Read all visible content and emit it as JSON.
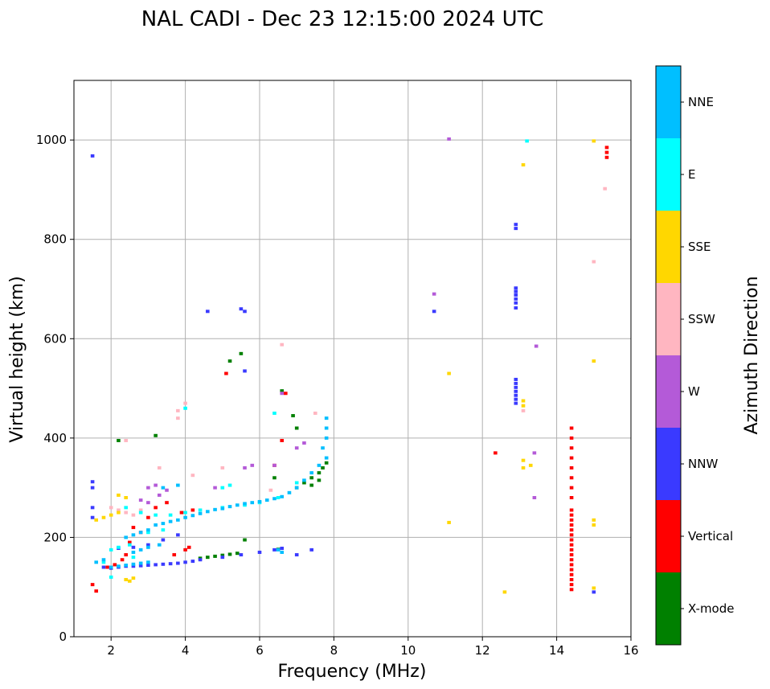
{
  "chart_data": {
    "type": "scatter",
    "title": "NAL CADI - Dec 23 12:15:00 2024 UTC",
    "xlabel": "Frequency (MHz)",
    "ylabel": "Virtual height (km)",
    "xlim": [
      1,
      16
    ],
    "ylim": [
      0,
      1120
    ],
    "xticks": [
      2,
      4,
      6,
      8,
      10,
      12,
      14,
      16
    ],
    "yticks": [
      0,
      200,
      400,
      600,
      800,
      1000
    ],
    "grid": true,
    "colorbar": {
      "title": "Azimuth Direction",
      "categories": [
        {
          "name": "X-mode",
          "color": "#008000"
        },
        {
          "name": "Vertical",
          "color": "#ff0000"
        },
        {
          "name": "NNW",
          "color": "#3a3aff"
        },
        {
          "name": "W",
          "color": "#b45ad8"
        },
        {
          "name": "SSW",
          "color": "#ffb6c1"
        },
        {
          "name": "SSE",
          "color": "#ffd700"
        },
        {
          "name": "E",
          "color": "#00ffff"
        },
        {
          "name": "NNE",
          "color": "#00bfff"
        }
      ]
    },
    "series": [
      {
        "name": "X-mode",
        "color": "#008000",
        "points": [
          [
            4.4,
            158
          ],
          [
            4.6,
            160
          ],
          [
            4.8,
            162
          ],
          [
            5.0,
            164
          ],
          [
            5.2,
            166
          ],
          [
            5.4,
            168
          ],
          [
            6.4,
            320
          ],
          [
            6.5,
            176
          ],
          [
            7.0,
            300
          ],
          [
            7.2,
            310
          ],
          [
            7.4,
            320
          ],
          [
            7.6,
            330
          ],
          [
            7.7,
            340
          ],
          [
            7.8,
            350
          ],
          [
            7.6,
            315
          ],
          [
            7.4,
            305
          ],
          [
            5.5,
            570
          ],
          [
            5.2,
            555
          ],
          [
            6.6,
            495
          ],
          [
            7.0,
            420
          ],
          [
            6.9,
            445
          ],
          [
            5.6,
            195
          ],
          [
            2.2,
            395
          ],
          [
            3.2,
            405
          ]
        ]
      },
      {
        "name": "Vertical",
        "color": "#ff0000",
        "points": [
          [
            1.5,
            105
          ],
          [
            1.6,
            92
          ],
          [
            1.9,
            140
          ],
          [
            2.1,
            145
          ],
          [
            2.3,
            155
          ],
          [
            2.5,
            190
          ],
          [
            2.8,
            210
          ],
          [
            3.0,
            240
          ],
          [
            3.2,
            260
          ],
          [
            3.5,
            270
          ],
          [
            4.0,
            175
          ],
          [
            4.1,
            180
          ],
          [
            2.4,
            165
          ],
          [
            2.6,
            220
          ],
          [
            3.7,
            165
          ],
          [
            3.9,
            250
          ],
          [
            4.2,
            255
          ],
          [
            6.4,
            345
          ],
          [
            6.6,
            395
          ],
          [
            6.7,
            490
          ],
          [
            5.1,
            530
          ],
          [
            12.35,
            370
          ],
          [
            14.4,
            95
          ],
          [
            14.4,
            105
          ],
          [
            14.4,
            115
          ],
          [
            14.4,
            125
          ],
          [
            14.4,
            135
          ],
          [
            14.4,
            145
          ],
          [
            14.4,
            155
          ],
          [
            14.4,
            165
          ],
          [
            14.4,
            175
          ],
          [
            14.4,
            185
          ],
          [
            14.4,
            195
          ],
          [
            14.4,
            205
          ],
          [
            14.4,
            215
          ],
          [
            14.4,
            225
          ],
          [
            14.4,
            235
          ],
          [
            14.4,
            245
          ],
          [
            14.4,
            255
          ],
          [
            14.4,
            280
          ],
          [
            14.4,
            300
          ],
          [
            14.4,
            320
          ],
          [
            14.4,
            340
          ],
          [
            14.4,
            360
          ],
          [
            14.4,
            380
          ],
          [
            14.4,
            400
          ],
          [
            14.4,
            420
          ],
          [
            15.35,
            965
          ],
          [
            15.35,
            975
          ],
          [
            15.35,
            985
          ]
        ]
      },
      {
        "name": "NNW",
        "color": "#3a3aff",
        "points": [
          [
            1.5,
            968
          ],
          [
            1.5,
            312
          ],
          [
            1.5,
            300
          ],
          [
            1.8,
            140
          ],
          [
            2.0,
            138
          ],
          [
            2.2,
            140
          ],
          [
            2.4,
            142
          ],
          [
            2.6,
            142
          ],
          [
            2.8,
            143
          ],
          [
            3.0,
            144
          ],
          [
            3.2,
            145
          ],
          [
            3.4,
            146
          ],
          [
            3.6,
            147
          ],
          [
            3.8,
            148
          ],
          [
            4.0,
            150
          ],
          [
            4.2,
            152
          ],
          [
            4.4,
            155
          ],
          [
            5.0,
            160
          ],
          [
            5.5,
            165
          ],
          [
            6.0,
            170
          ],
          [
            6.4,
            175
          ],
          [
            6.6,
            178
          ],
          [
            7.0,
            165
          ],
          [
            7.4,
            175
          ],
          [
            1.5,
            260
          ],
          [
            1.5,
            240
          ],
          [
            4.6,
            655
          ],
          [
            5.5,
            660
          ],
          [
            5.6,
            655
          ],
          [
            5.6,
            535
          ],
          [
            10.7,
            655
          ],
          [
            12.9,
            830
          ],
          [
            12.9,
            822
          ],
          [
            12.9,
            702
          ],
          [
            12.9,
            695
          ],
          [
            12.9,
            688
          ],
          [
            12.9,
            680
          ],
          [
            12.9,
            672
          ],
          [
            12.9,
            662
          ],
          [
            12.9,
            518
          ],
          [
            12.9,
            510
          ],
          [
            12.9,
            502
          ],
          [
            12.9,
            494
          ],
          [
            12.9,
            486
          ],
          [
            12.9,
            478
          ],
          [
            12.9,
            470
          ],
          [
            15.0,
            90
          ],
          [
            2.2,
            178
          ],
          [
            2.6,
            180
          ],
          [
            3.0,
            185
          ],
          [
            3.4,
            195
          ],
          [
            3.8,
            205
          ]
        ]
      },
      {
        "name": "W",
        "color": "#b45ad8",
        "points": [
          [
            10.7,
            690
          ],
          [
            11.1,
            1002
          ],
          [
            13.45,
            585
          ],
          [
            13.4,
            370
          ],
          [
            13.4,
            280
          ],
          [
            3.0,
            300
          ],
          [
            3.2,
            305
          ],
          [
            3.5,
            295
          ],
          [
            5.6,
            340
          ],
          [
            5.8,
            345
          ],
          [
            2.8,
            275
          ],
          [
            3.0,
            270
          ],
          [
            3.3,
            285
          ],
          [
            7.0,
            380
          ],
          [
            7.2,
            390
          ],
          [
            6.4,
            345
          ],
          [
            4.8,
            300
          ],
          [
            6.6,
            490
          ]
        ]
      },
      {
        "name": "SSW",
        "color": "#ffb6c1",
        "points": [
          [
            6.6,
            588
          ],
          [
            4.0,
            470
          ],
          [
            3.8,
            455
          ],
          [
            3.8,
            440
          ],
          [
            2.4,
            395
          ],
          [
            2.0,
            260
          ],
          [
            2.2,
            255
          ],
          [
            2.4,
            250
          ],
          [
            2.6,
            245
          ],
          [
            2.8,
            255
          ],
          [
            3.3,
            340
          ],
          [
            4.2,
            325
          ],
          [
            5.0,
            340
          ],
          [
            13.1,
            455
          ],
          [
            15.0,
            755
          ],
          [
            15.3,
            902
          ],
          [
            7.5,
            450
          ],
          [
            6.3,
            295
          ]
        ]
      },
      {
        "name": "SSE",
        "color": "#ffd700",
        "points": [
          [
            1.6,
            235
          ],
          [
            1.8,
            240
          ],
          [
            2.0,
            245
          ],
          [
            2.2,
            250
          ],
          [
            2.4,
            115
          ],
          [
            2.5,
            112
          ],
          [
            2.6,
            118
          ],
          [
            2.2,
            285
          ],
          [
            2.4,
            280
          ],
          [
            11.1,
            530
          ],
          [
            11.1,
            230
          ],
          [
            12.6,
            90
          ],
          [
            13.1,
            950
          ],
          [
            13.1,
            475
          ],
          [
            13.1,
            465
          ],
          [
            13.1,
            355
          ],
          [
            13.1,
            340
          ],
          [
            13.3,
            345
          ],
          [
            15.0,
            235
          ],
          [
            15.0,
            225
          ],
          [
            15.0,
            998
          ],
          [
            15.0,
            555
          ],
          [
            15.0,
            98
          ]
        ]
      },
      {
        "name": "E",
        "color": "#00ffff",
        "points": [
          [
            4.0,
            460
          ],
          [
            13.2,
            998
          ],
          [
            2.4,
            260
          ],
          [
            2.8,
            250
          ],
          [
            3.2,
            245
          ],
          [
            3.6,
            245
          ],
          [
            4.0,
            250
          ],
          [
            4.4,
            255
          ],
          [
            2.0,
            175
          ],
          [
            2.2,
            180
          ],
          [
            2.5,
            185
          ],
          [
            3.0,
            210
          ],
          [
            3.4,
            215
          ],
          [
            5.0,
            260
          ],
          [
            5.6,
            265
          ],
          [
            6.0,
            270
          ],
          [
            6.5,
            280
          ],
          [
            7.0,
            310
          ],
          [
            1.8,
            150
          ],
          [
            2.6,
            160
          ],
          [
            6.4,
            450
          ],
          [
            5.0,
            300
          ],
          [
            5.2,
            305
          ],
          [
            2.0,
            120
          ]
        ]
      },
      {
        "name": "NNE",
        "color": "#00bfff",
        "points": [
          [
            2.0,
            140
          ],
          [
            2.2,
            142
          ],
          [
            2.4,
            144
          ],
          [
            2.6,
            146
          ],
          [
            2.8,
            148
          ],
          [
            3.0,
            150
          ],
          [
            3.2,
            225
          ],
          [
            3.4,
            228
          ],
          [
            3.6,
            232
          ],
          [
            3.8,
            235
          ],
          [
            4.0,
            240
          ],
          [
            4.2,
            244
          ],
          [
            4.4,
            248
          ],
          [
            4.6,
            252
          ],
          [
            4.8,
            256
          ],
          [
            5.0,
            258
          ],
          [
            5.2,
            262
          ],
          [
            5.4,
            265
          ],
          [
            5.6,
            268
          ],
          [
            5.8,
            270
          ],
          [
            6.0,
            272
          ],
          [
            6.2,
            275
          ],
          [
            6.4,
            278
          ],
          [
            6.6,
            282
          ],
          [
            6.8,
            290
          ],
          [
            7.0,
            300
          ],
          [
            7.2,
            315
          ],
          [
            7.4,
            330
          ],
          [
            7.6,
            345
          ],
          [
            7.8,
            360
          ],
          [
            7.7,
            380
          ],
          [
            7.8,
            400
          ],
          [
            7.8,
            420
          ],
          [
            7.8,
            440
          ],
          [
            6.5,
            175
          ],
          [
            6.6,
            170
          ],
          [
            2.4,
            200
          ],
          [
            2.6,
            205
          ],
          [
            2.8,
            210
          ],
          [
            3.0,
            215
          ],
          [
            3.4,
            300
          ],
          [
            3.8,
            305
          ],
          [
            2.6,
            170
          ],
          [
            2.8,
            175
          ],
          [
            3.0,
            180
          ],
          [
            3.3,
            185
          ],
          [
            1.6,
            150
          ],
          [
            1.8,
            155
          ]
        ]
      }
    ]
  }
}
